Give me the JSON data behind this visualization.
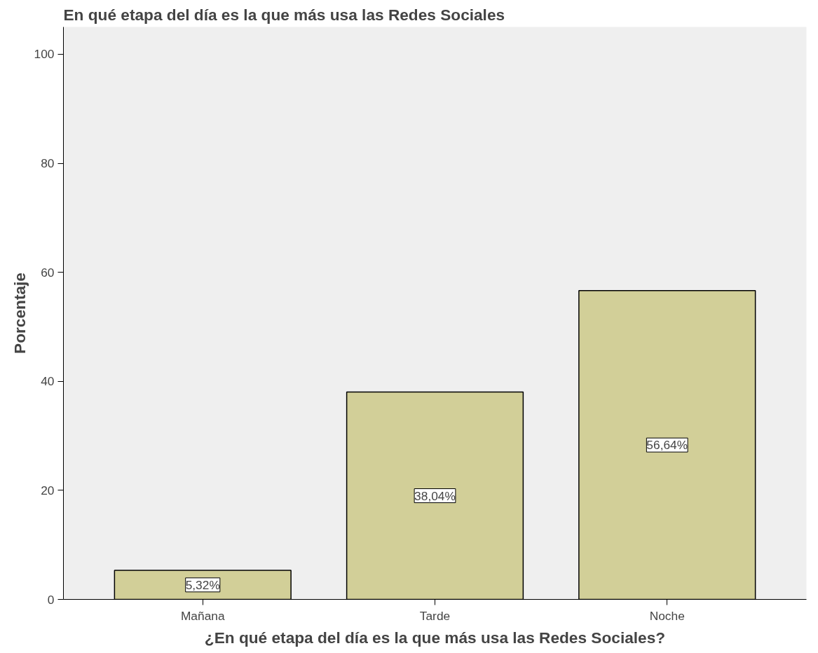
{
  "chart_data": {
    "type": "bar",
    "title": "En qué etapa del día es la que más usa las Redes Sociales",
    "xlabel": "¿En qué etapa del día es la que más usa las Redes Sociales?",
    "ylabel": "Porcentaje",
    "categories": [
      "Mañana",
      "Tarde",
      "Noche"
    ],
    "values": [
      5.32,
      38.04,
      56.64
    ],
    "value_labels": [
      "5,32%",
      "38,04%",
      "56,64%"
    ],
    "color": "#d2cf98",
    "ylim": [
      0,
      105
    ],
    "yticks": [
      0,
      20,
      40,
      60,
      80,
      100
    ],
    "grid": false
  }
}
